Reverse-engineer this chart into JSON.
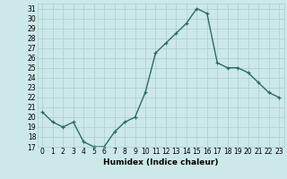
{
  "x": [
    0,
    1,
    2,
    3,
    4,
    5,
    6,
    7,
    8,
    9,
    10,
    11,
    12,
    13,
    14,
    15,
    16,
    17,
    18,
    19,
    20,
    21,
    22,
    23
  ],
  "y": [
    20.5,
    19.5,
    19.0,
    19.5,
    17.5,
    17.0,
    17.0,
    18.5,
    19.5,
    20.0,
    22.5,
    26.5,
    27.5,
    28.5,
    29.5,
    31.0,
    30.5,
    25.5,
    25.0,
    25.0,
    24.5,
    23.5,
    22.5,
    22.0
  ],
  "line_color": "#2e6b5e",
  "marker": "+",
  "bg_color": "#cce8e8",
  "grid_color": "#aacece",
  "xlabel": "Humidex (Indice chaleur)",
  "ylim": [
    17,
    31.5
  ],
  "yticks": [
    17,
    18,
    19,
    20,
    21,
    22,
    23,
    24,
    25,
    26,
    27,
    28,
    29,
    30,
    31
  ],
  "xticks": [
    0,
    1,
    2,
    3,
    4,
    5,
    6,
    7,
    8,
    9,
    10,
    11,
    12,
    13,
    14,
    15,
    16,
    17,
    18,
    19,
    20,
    21,
    22,
    23
  ],
  "tick_fontsize": 5.5,
  "xlabel_fontsize": 6.5,
  "line_width": 1.0,
  "marker_size": 3.5
}
